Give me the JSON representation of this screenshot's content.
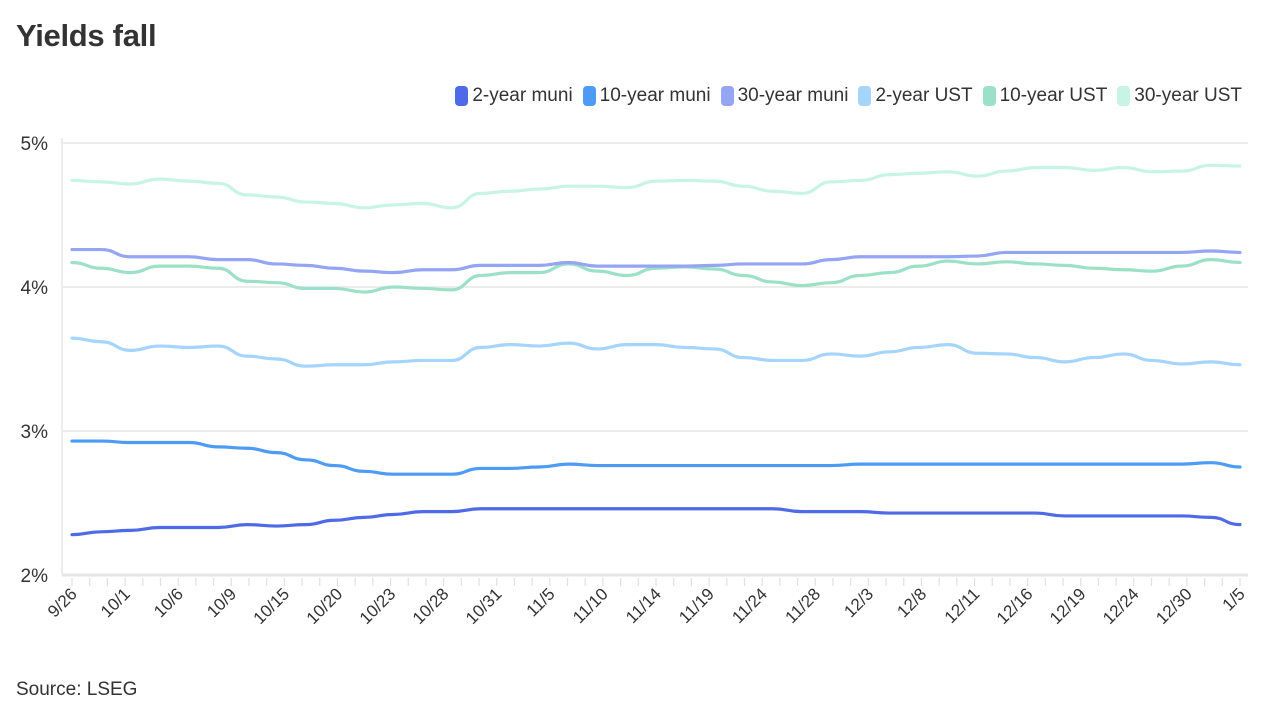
{
  "chart_data": {
    "type": "line",
    "title": "Yields fall",
    "source": "Source: LSEG",
    "xlabel": "",
    "ylabel": "",
    "ylim": [
      2,
      5
    ],
    "y_ticks": [
      "2%",
      "3%",
      "4%",
      "5%"
    ],
    "x_tick_labels": [
      "9/26",
      "10/1",
      "10/6",
      "10/9",
      "10/15",
      "10/20",
      "10/23",
      "10/28",
      "10/31",
      "11/5",
      "11/10",
      "11/14",
      "11/19",
      "11/24",
      "11/28",
      "12/3",
      "12/8",
      "12/11",
      "12/16",
      "12/19",
      "12/24",
      "12/30",
      "1/5"
    ],
    "grid": true,
    "legend_position": "top-right",
    "series": [
      {
        "name": "2-year muni",
        "color": "#4f6ae6",
        "values": [
          2.28,
          2.3,
          2.31,
          2.33,
          2.33,
          2.33,
          2.35,
          2.34,
          2.35,
          2.38,
          2.4,
          2.42,
          2.44,
          2.44,
          2.46,
          2.46,
          2.46,
          2.46,
          2.46,
          2.46,
          2.46,
          2.46,
          2.46,
          2.46,
          2.46,
          2.44,
          2.44,
          2.44,
          2.43,
          2.43,
          2.43,
          2.43,
          2.43,
          2.43,
          2.41,
          2.41,
          2.41,
          2.41,
          2.41,
          2.4,
          2.35
        ]
      },
      {
        "name": "10-year muni",
        "color": "#4d9bf3",
        "values": [
          2.93,
          2.93,
          2.92,
          2.92,
          2.92,
          2.89,
          2.88,
          2.85,
          2.8,
          2.76,
          2.72,
          2.7,
          2.7,
          2.7,
          2.74,
          2.74,
          2.75,
          2.77,
          2.76,
          2.76,
          2.76,
          2.76,
          2.76,
          2.76,
          2.76,
          2.76,
          2.76,
          2.77,
          2.77,
          2.77,
          2.77,
          2.77,
          2.77,
          2.77,
          2.77,
          2.77,
          2.77,
          2.77,
          2.77,
          2.78,
          2.75
        ]
      },
      {
        "name": "30-year muni",
        "color": "#94a5f3",
        "values": [
          4.26,
          4.26,
          4.21,
          4.21,
          4.21,
          4.19,
          4.19,
          4.16,
          4.15,
          4.13,
          4.11,
          4.1,
          4.12,
          4.12,
          4.15,
          4.15,
          4.15,
          4.17,
          4.145,
          4.145,
          4.145,
          4.145,
          4.15,
          4.16,
          4.16,
          4.16,
          4.19,
          4.21,
          4.21,
          4.21,
          4.21,
          4.215,
          4.24,
          4.24,
          4.24,
          4.24,
          4.24,
          4.24,
          4.24,
          4.25,
          4.24
        ]
      },
      {
        "name": "2-year UST",
        "color": "#a5d4fc",
        "values": [
          3.645,
          3.62,
          3.56,
          3.59,
          3.58,
          3.59,
          3.52,
          3.5,
          3.45,
          3.46,
          3.46,
          3.48,
          3.49,
          3.49,
          3.58,
          3.6,
          3.59,
          3.61,
          3.57,
          3.6,
          3.6,
          3.58,
          3.57,
          3.51,
          3.49,
          3.49,
          3.535,
          3.52,
          3.55,
          3.58,
          3.6,
          3.54,
          3.535,
          3.51,
          3.48,
          3.51,
          3.535,
          3.49,
          3.465,
          3.48,
          3.46
        ]
      },
      {
        "name": "10-year UST",
        "color": "#9be0c7",
        "values": [
          4.17,
          4.13,
          4.1,
          4.145,
          4.145,
          4.13,
          4.04,
          4.03,
          3.99,
          3.99,
          3.965,
          4.0,
          3.99,
          3.98,
          4.08,
          4.1,
          4.1,
          4.16,
          4.11,
          4.08,
          4.13,
          4.14,
          4.125,
          4.08,
          4.035,
          4.01,
          4.03,
          4.08,
          4.1,
          4.145,
          4.18,
          4.16,
          4.175,
          4.16,
          4.15,
          4.13,
          4.12,
          4.11,
          4.145,
          4.19,
          4.17
        ]
      },
      {
        "name": "30-year UST",
        "color": "#c8f4e5",
        "values": [
          4.74,
          4.73,
          4.715,
          4.75,
          4.735,
          4.72,
          4.64,
          4.625,
          4.59,
          4.58,
          4.55,
          4.57,
          4.58,
          4.55,
          4.65,
          4.665,
          4.68,
          4.7,
          4.7,
          4.69,
          4.735,
          4.74,
          4.735,
          4.7,
          4.665,
          4.65,
          4.73,
          4.74,
          4.78,
          4.79,
          4.8,
          4.77,
          4.805,
          4.83,
          4.83,
          4.81,
          4.83,
          4.8,
          4.805,
          4.845,
          4.84
        ]
      }
    ]
  }
}
